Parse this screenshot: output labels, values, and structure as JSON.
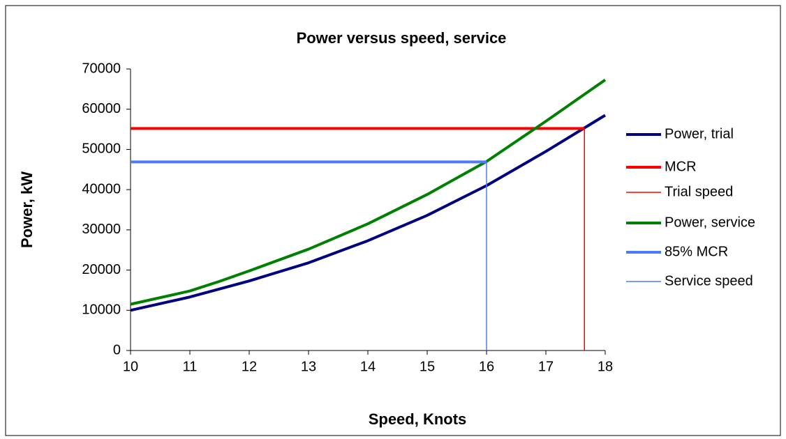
{
  "chart_data": {
    "type": "line",
    "title": "Power versus speed, service",
    "x_label": "Speed, Knots",
    "y_label": "Power, kW",
    "xlim": [
      10,
      18
    ],
    "xticks": [
      10,
      11,
      12,
      13,
      14,
      15,
      16,
      17,
      18
    ],
    "ylim": [
      0,
      70000
    ],
    "yticks": [
      0,
      10000,
      20000,
      30000,
      40000,
      50000,
      60000,
      70000
    ],
    "grid": false,
    "legend": "right",
    "series": [
      {
        "name": "Power, trial",
        "color": "#000080",
        "line_width": 4,
        "x": [
          10,
          11,
          11.5,
          12,
          13,
          14,
          15,
          16,
          17,
          18
        ],
        "values": [
          10000,
          13300,
          15300,
          17300,
          21800,
          27300,
          33600,
          41000,
          49500,
          58500
        ]
      },
      {
        "name": "MCR",
        "color": "#ff0000",
        "line_width": 4,
        "x": [
          10,
          17.65
        ],
        "values": [
          55200,
          55200
        ]
      },
      {
        "name": "Trial speed",
        "color": "#ff0000",
        "line_width": 1.5,
        "x": [
          17.65,
          17.65
        ],
        "values": [
          0,
          55200
        ]
      },
      {
        "name": "Power, service",
        "color": "#008000",
        "line_width": 4,
        "x": [
          10,
          11,
          11.5,
          12,
          13,
          14,
          15,
          16,
          17,
          18
        ],
        "values": [
          11500,
          14800,
          17200,
          19800,
          25200,
          31500,
          38800,
          47000,
          57000,
          67300
        ]
      },
      {
        "name": "85% MCR",
        "color": "#4a7bff",
        "line_width": 4,
        "x": [
          10,
          16
        ],
        "values": [
          46900,
          46900
        ]
      },
      {
        "name": "Service speed",
        "color": "#4a7bff",
        "line_width": 1.5,
        "x": [
          16,
          16
        ],
        "values": [
          0,
          46900
        ]
      }
    ]
  }
}
